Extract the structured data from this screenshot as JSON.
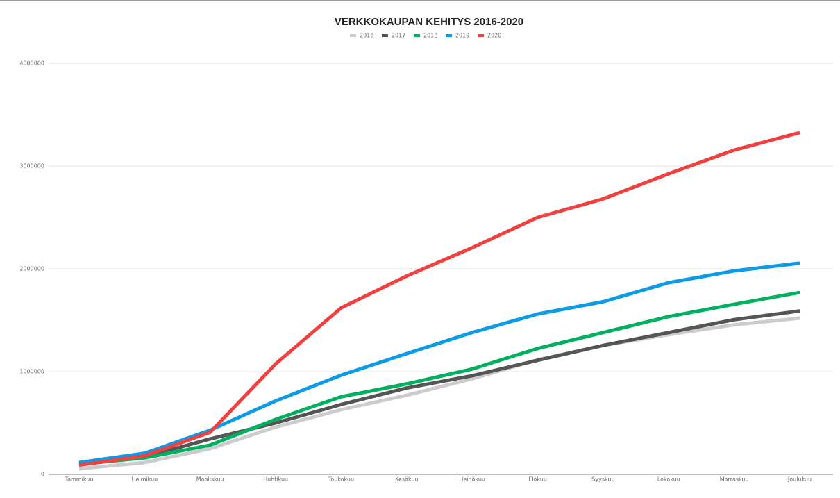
{
  "chart_data": {
    "type": "line",
    "title": "VERKKOKAUPAN KEHITYS 2016-2020",
    "categories": [
      "Tammikuu",
      "Helmikuu",
      "Maaliskuu",
      "Huhtikuu",
      "Toukokuu",
      "Kesäkuu",
      "Heinäkuu",
      "Elokuu",
      "Syyskuu",
      "Lokakuu",
      "Marraskuu",
      "Joulukuu"
    ],
    "series": [
      {
        "name": "2016",
        "color": "#cccccc",
        "values": [
          55000,
          115000,
          250000,
          460000,
          630000,
          770000,
          930000,
          1115000,
          1255000,
          1360000,
          1455000,
          1520000
        ]
      },
      {
        "name": "2017",
        "color": "#555555",
        "values": [
          95000,
          170000,
          345000,
          500000,
          680000,
          840000,
          960000,
          1110000,
          1255000,
          1380000,
          1505000,
          1590000
        ]
      },
      {
        "name": "2018",
        "color": "#00b060",
        "values": [
          100000,
          160000,
          285000,
          535000,
          755000,
          880000,
          1025000,
          1225000,
          1380000,
          1535000,
          1655000,
          1770000
        ]
      },
      {
        "name": "2019",
        "color": "#0e9be6",
        "values": [
          115000,
          205000,
          430000,
          715000,
          965000,
          1175000,
          1380000,
          1560000,
          1680000,
          1865000,
          1980000,
          2055000
        ]
      },
      {
        "name": "2020",
        "color": "#f04040",
        "values": [
          90000,
          180000,
          410000,
          1075000,
          1620000,
          1930000,
          2205000,
          2500000,
          2680000,
          2925000,
          3155000,
          3325000
        ]
      }
    ],
    "ylim": [
      0,
      4000000
    ],
    "yticks": [
      0,
      1000000,
      2000000,
      3000000,
      4000000
    ],
    "grid": true,
    "legend": "top"
  }
}
